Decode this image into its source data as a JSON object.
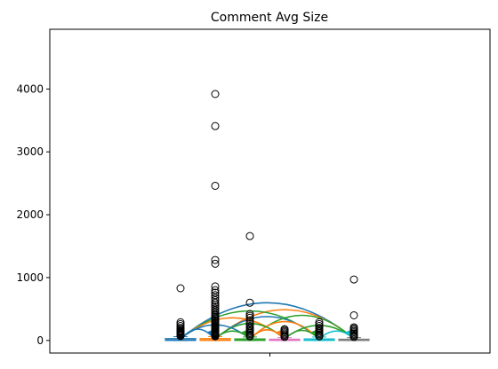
{
  "chart_data": {
    "type": "box",
    "title": "Comment Avg Size",
    "xlabel": "",
    "ylabel": "",
    "ylim": [
      -200,
      4950
    ],
    "yticks": [
      0,
      1000,
      2000,
      3000,
      4000
    ],
    "grid": false,
    "legend": "none",
    "boxes": [
      {
        "color": "#1f77b4",
        "median": 10,
        "q1": 0,
        "q3": 30,
        "whisker_low": 0,
        "whisker_high": 60,
        "outliers": [
          70,
          80,
          90,
          100,
          110,
          120,
          130,
          140,
          150,
          160,
          180,
          200,
          230,
          260,
          290,
          830
        ]
      },
      {
        "color": "#ff7f0e",
        "median": 10,
        "q1": 0,
        "q3": 30,
        "whisker_low": 0,
        "whisker_high": 60,
        "outliers": [
          65,
          75,
          85,
          95,
          105,
          115,
          125,
          135,
          145,
          160,
          175,
          190,
          205,
          220,
          240,
          260,
          280,
          300,
          320,
          340,
          360,
          380,
          400,
          420,
          450,
          480,
          510,
          540,
          570,
          600,
          640,
          680,
          720,
          760,
          800,
          860,
          1220,
          1280,
          2460,
          3410,
          3920
        ]
      },
      {
        "color": "#2ca02c",
        "median": 10,
        "q1": 0,
        "q3": 25,
        "whisker_low": 0,
        "whisker_high": 55,
        "outliers": [
          65,
          80,
          100,
          120,
          140,
          160,
          180,
          200,
          230,
          260,
          290,
          320,
          360,
          390,
          420,
          600,
          1660
        ]
      },
      {
        "color": "#e377c2",
        "median": 5,
        "q1": 0,
        "q3": 20,
        "whisker_low": 0,
        "whisker_high": 45,
        "outliers": [
          55,
          70,
          90,
          110,
          130,
          150,
          170,
          180
        ]
      },
      {
        "color": "#17becf",
        "median": 10,
        "q1": 0,
        "q3": 25,
        "whisker_low": 0,
        "whisker_high": 55,
        "outliers": [
          65,
          80,
          100,
          120,
          140,
          160,
          180,
          200,
          230,
          260,
          290
        ]
      },
      {
        "color": "#7f7f7f",
        "median": 5,
        "q1": 0,
        "q3": 20,
        "whisker_low": 0,
        "whisker_high": 45,
        "outliers": [
          55,
          70,
          90,
          110,
          130,
          150,
          170,
          190,
          210,
          400,
          970
        ]
      }
    ],
    "arcs": [
      {
        "from": 0,
        "to": 5,
        "color": "#1f77b4",
        "peak": 600
      },
      {
        "from": 1,
        "to": 5,
        "color": "#ff7f0e",
        "peak": 490
      },
      {
        "from": 0,
        "to": 4,
        "color": "#2ca02c",
        "peak": 470
      },
      {
        "from": 1,
        "to": 4,
        "color": "#1f77b4",
        "peak": 380
      },
      {
        "from": 2,
        "to": 5,
        "color": "#2ca02c",
        "peak": 400
      },
      {
        "from": 0,
        "to": 3,
        "color": "#ff7f0e",
        "peak": 360
      },
      {
        "from": 2,
        "to": 4,
        "color": "#ff7f0e",
        "peak": 300
      },
      {
        "from": 1,
        "to": 3,
        "color": "#2ca02c",
        "peak": 270
      },
      {
        "from": 3,
        "to": 5,
        "color": "#2ca02c",
        "peak": 240
      },
      {
        "from": 0,
        "to": 2,
        "color": "#1f77b4",
        "peak": 250
      },
      {
        "from": 0,
        "to": 1,
        "color": "#1f77b4",
        "peak": 180
      },
      {
        "from": 1,
        "to": 2,
        "color": "#2ca02c",
        "peak": 150
      },
      {
        "from": 2,
        "to": 3,
        "color": "#ff7f0e",
        "peak": 170
      },
      {
        "from": 3,
        "to": 4,
        "color": "#2ca02c",
        "peak": 160
      },
      {
        "from": 4,
        "to": 5,
        "color": "#17becf",
        "peak": 150
      }
    ]
  }
}
